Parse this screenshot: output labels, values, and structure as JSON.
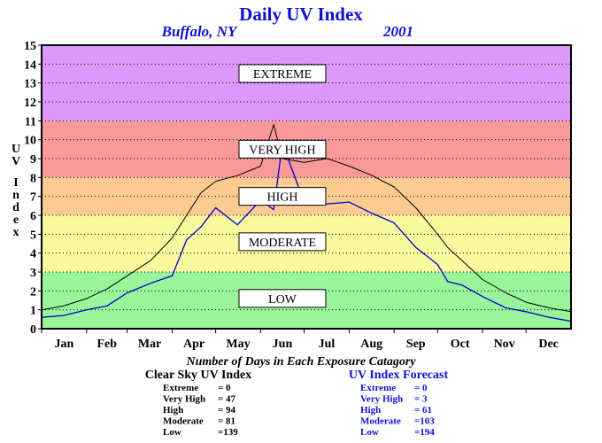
{
  "chart_data": {
    "type": "line",
    "title": "Daily UV Index",
    "subtitle_location": "Buffalo, NY",
    "subtitle_year": "2001",
    "xlabel": "",
    "ylabel": "UV Index",
    "ylim": [
      0,
      15
    ],
    "yticks": [
      0,
      1,
      2,
      3,
      4,
      5,
      6,
      7,
      8,
      9,
      10,
      11,
      12,
      13,
      14,
      15
    ],
    "xlim": [
      0,
      365
    ],
    "grid": true,
    "months": [
      "Jan",
      "Feb",
      "Mar",
      "Apr",
      "May",
      "Jun",
      "Jul",
      "Aug",
      "Sep",
      "Oct",
      "Nov",
      "Dec"
    ],
    "month_start_days": [
      0,
      31,
      59,
      90,
      120,
      151,
      181,
      212,
      243,
      273,
      304,
      334
    ],
    "bands": [
      {
        "name": "LOW",
        "from": 0,
        "to": 3,
        "color": "#99f599"
      },
      {
        "name": "MODERATE",
        "from": 3,
        "to": 6,
        "color": "#f9f99d"
      },
      {
        "name": "HIGH",
        "from": 6,
        "to": 8,
        "color": "#fccb92"
      },
      {
        "name": "VERY HIGH",
        "from": 8,
        "to": 11,
        "color": "#f99999"
      },
      {
        "name": "EXTREME",
        "from": 11,
        "to": 15,
        "color": "#dd99f9"
      }
    ],
    "band_label_values": [
      1.6,
      4.6,
      7.0,
      9.5,
      13.5
    ],
    "series": [
      {
        "name": "Clear Sky UV Index",
        "color": "#000000",
        "points": [
          [
            0,
            1.0
          ],
          [
            15,
            1.2
          ],
          [
            31,
            1.6
          ],
          [
            45,
            2.1
          ],
          [
            59,
            2.8
          ],
          [
            75,
            3.6
          ],
          [
            90,
            4.8
          ],
          [
            100,
            6.0
          ],
          [
            110,
            7.2
          ],
          [
            120,
            7.8
          ],
          [
            135,
            8.1
          ],
          [
            151,
            8.6
          ],
          [
            160,
            10.8
          ],
          [
            166,
            9.0
          ],
          [
            181,
            8.8
          ],
          [
            197,
            9.0
          ],
          [
            212,
            8.6
          ],
          [
            228,
            8.1
          ],
          [
            243,
            7.5
          ],
          [
            258,
            6.4
          ],
          [
            273,
            5.0
          ],
          [
            280,
            4.3
          ],
          [
            290,
            3.6
          ],
          [
            304,
            2.6
          ],
          [
            320,
            1.9
          ],
          [
            334,
            1.4
          ],
          [
            350,
            1.1
          ],
          [
            365,
            0.9
          ]
        ]
      },
      {
        "name": "UV Index Forecast",
        "color": "#0000cc",
        "points": [
          [
            0,
            0.6
          ],
          [
            15,
            0.7
          ],
          [
            31,
            1.0
          ],
          [
            45,
            1.2
          ],
          [
            59,
            1.9
          ],
          [
            75,
            2.4
          ],
          [
            90,
            2.8
          ],
          [
            100,
            4.7
          ],
          [
            110,
            5.4
          ],
          [
            120,
            6.4
          ],
          [
            135,
            5.5
          ],
          [
            151,
            6.8
          ],
          [
            160,
            6.3
          ],
          [
            166,
            9.8
          ],
          [
            181,
            6.7
          ],
          [
            197,
            6.6
          ],
          [
            212,
            6.7
          ],
          [
            228,
            6.1
          ],
          [
            243,
            5.6
          ],
          [
            258,
            4.3
          ],
          [
            273,
            3.4
          ],
          [
            280,
            2.5
          ],
          [
            290,
            2.3
          ],
          [
            304,
            1.7
          ],
          [
            320,
            1.1
          ],
          [
            334,
            0.9
          ],
          [
            350,
            0.6
          ],
          [
            365,
            0.4
          ]
        ]
      }
    ],
    "caption": "Number of Days in Each Exposure Catagory",
    "stats": [
      {
        "title": "Clear Sky UV Index",
        "rows": [
          {
            "label": "Extreme",
            "value": "=    0"
          },
          {
            "label": "Very High",
            "value": "= 47"
          },
          {
            "label": "High",
            "value": "= 94"
          },
          {
            "label": "Moderate",
            "value": "= 81"
          },
          {
            "label": "Low",
            "value": "=139"
          }
        ]
      },
      {
        "title": "UV Index Forecast",
        "rows": [
          {
            "label": "Extreme",
            "value": "=    0"
          },
          {
            "label": "Very High",
            "value": "=    3"
          },
          {
            "label": "High",
            "value": "= 61"
          },
          {
            "label": "Moderate",
            "value": "=103"
          },
          {
            "label": "Low",
            "value": "=194"
          }
        ]
      }
    ]
  }
}
